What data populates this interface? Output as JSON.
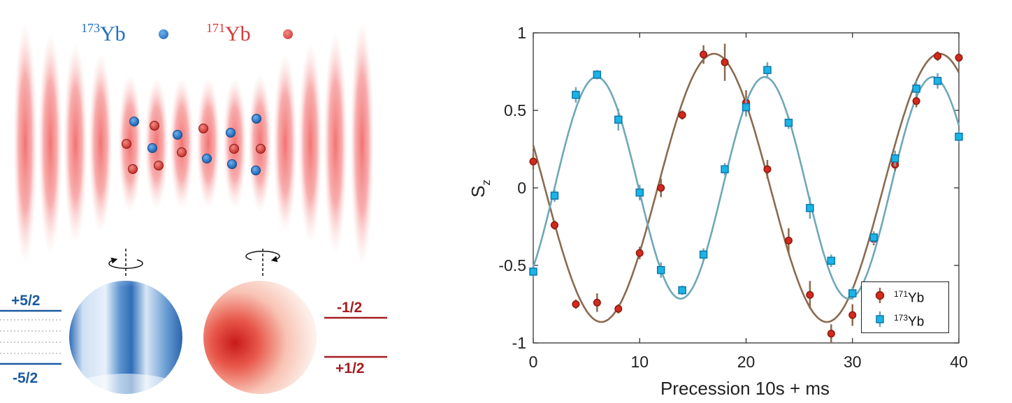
{
  "illustration": {
    "isotope_blue": {
      "mass": "173",
      "symbol": "Yb",
      "color": "#1f6fc0"
    },
    "isotope_red": {
      "mass": "171",
      "symbol": "Yb",
      "color": "#d43b3b"
    },
    "levels_blue": {
      "top": "+5/2",
      "bottom": "-5/2",
      "color": "#1b5aa0"
    },
    "levels_red": {
      "top": "-1/2",
      "bottom": "+1/2",
      "color": "#a41e22"
    }
  },
  "chart_data": {
    "type": "scatter",
    "title": "",
    "xlabel": "Precession 10s + ms",
    "ylabel": "S",
    "ylabel_sub": "z",
    "xlim": [
      0,
      40
    ],
    "ylim": [
      -1,
      1
    ],
    "xticks": [
      "0",
      "10",
      "20",
      "30",
      "40"
    ],
    "yticks": [
      "-1",
      "-0.5",
      "0",
      "0.5",
      "1"
    ],
    "grid": false,
    "legend_position": "bottom-right",
    "series": [
      {
        "name_mass": "171",
        "name_symbol": "Yb",
        "marker": "circle",
        "marker_color": "#d42a1e",
        "line_color": "#8b6a4e",
        "x": [
          0,
          2,
          4,
          6,
          8,
          10,
          12,
          14,
          16,
          18,
          20,
          22,
          24,
          26,
          28,
          30,
          32,
          34,
          36,
          38,
          40
        ],
        "y": [
          0.17,
          -0.24,
          -0.75,
          -0.74,
          -0.78,
          -0.42,
          0.0,
          0.47,
          0.86,
          0.81,
          0.55,
          0.12,
          -0.34,
          -0.69,
          -0.94,
          -0.82,
          -0.33,
          0.15,
          0.56,
          0.85,
          0.84
        ],
        "err": [
          0.05,
          0.03,
          0.03,
          0.06,
          0.03,
          0.04,
          0.06,
          0.03,
          0.06,
          0.12,
          0.08,
          0.06,
          0.08,
          0.09,
          0.06,
          0.07,
          0.04,
          0.04,
          0.04,
          0.03,
          0.03
        ],
        "fit": {
          "amplitude": 0.865,
          "period": 21.2,
          "phase_x": 16.99,
          "offset": 0.0
        }
      },
      {
        "name_mass": "173",
        "name_symbol": "Yb",
        "marker": "square",
        "marker_color": "#1ab4e8",
        "line_color": "#6fa7b8",
        "x": [
          0,
          2,
          4,
          6,
          8,
          10,
          12,
          14,
          16,
          18,
          20,
          22,
          24,
          26,
          28,
          30,
          32,
          34,
          36,
          38,
          40
        ],
        "y": [
          -0.54,
          -0.05,
          0.6,
          0.73,
          0.44,
          -0.03,
          -0.53,
          -0.66,
          -0.43,
          0.12,
          0.52,
          0.76,
          0.42,
          -0.13,
          -0.47,
          -0.68,
          -0.32,
          0.19,
          0.64,
          0.69,
          0.33
        ],
        "err": [
          0.04,
          0.04,
          0.05,
          0.03,
          0.07,
          0.05,
          0.05,
          0.03,
          0.04,
          0.04,
          0.06,
          0.05,
          0.04,
          0.07,
          0.04,
          0.04,
          0.04,
          0.05,
          0.05,
          0.05,
          0.04
        ],
        "fit": {
          "amplitude": 0.715,
          "period": 15.8,
          "phase_x": 5.95,
          "offset": 0.0
        }
      }
    ]
  }
}
